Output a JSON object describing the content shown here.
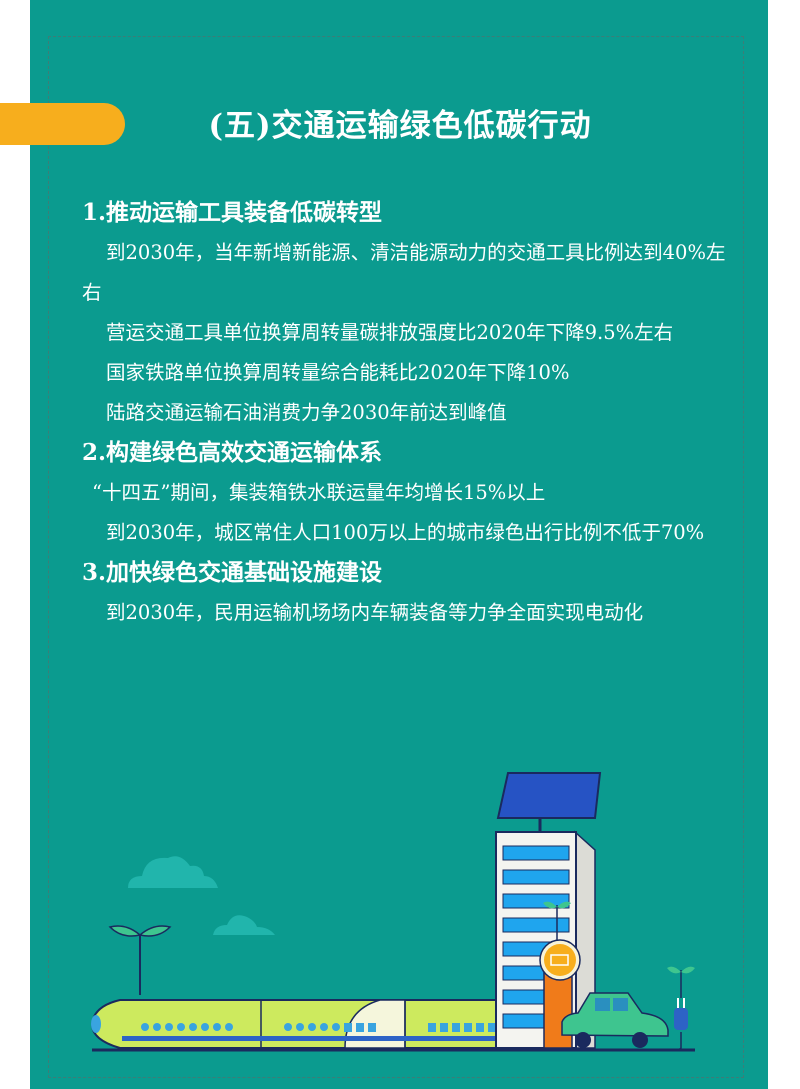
{
  "colors": {
    "background": "#0b9b8f",
    "accent_tab": "#f7ae1d",
    "text": "#ffffff"
  },
  "title": "(五)交通运输绿色低碳行动",
  "sections": [
    {
      "heading": "1.推动运输工具装备低碳转型",
      "items": [
        "到2030年，当年新增新能源、清洁能源动力的交通工具比例达到40%左右",
        "营运交通工具单位换算周转量碳排放强度比2020年下降9.5%左右",
        "国家铁路单位换算周转量综合能耗比2020年下降10%",
        "陆路交通运输石油消费力争2030年前达到峰值"
      ]
    },
    {
      "heading": "2.构建绿色高效交通运输体系",
      "items": [
        "“十四五”期间，集装箱铁水联运量年均增长15%以上",
        "到2030年，城区常住人口100万以上的城市绿色出行比例不低于70%"
      ]
    },
    {
      "heading": "3.加快绿色交通基础设施建设",
      "items": [
        "到2030年，民用运输机场场内车辆装备等力争全面实现电动化"
      ]
    }
  ],
  "illustration": [
    "train",
    "office-building",
    "solar-panel",
    "charging-station",
    "electric-car",
    "plug",
    "sprouts",
    "clouds"
  ]
}
